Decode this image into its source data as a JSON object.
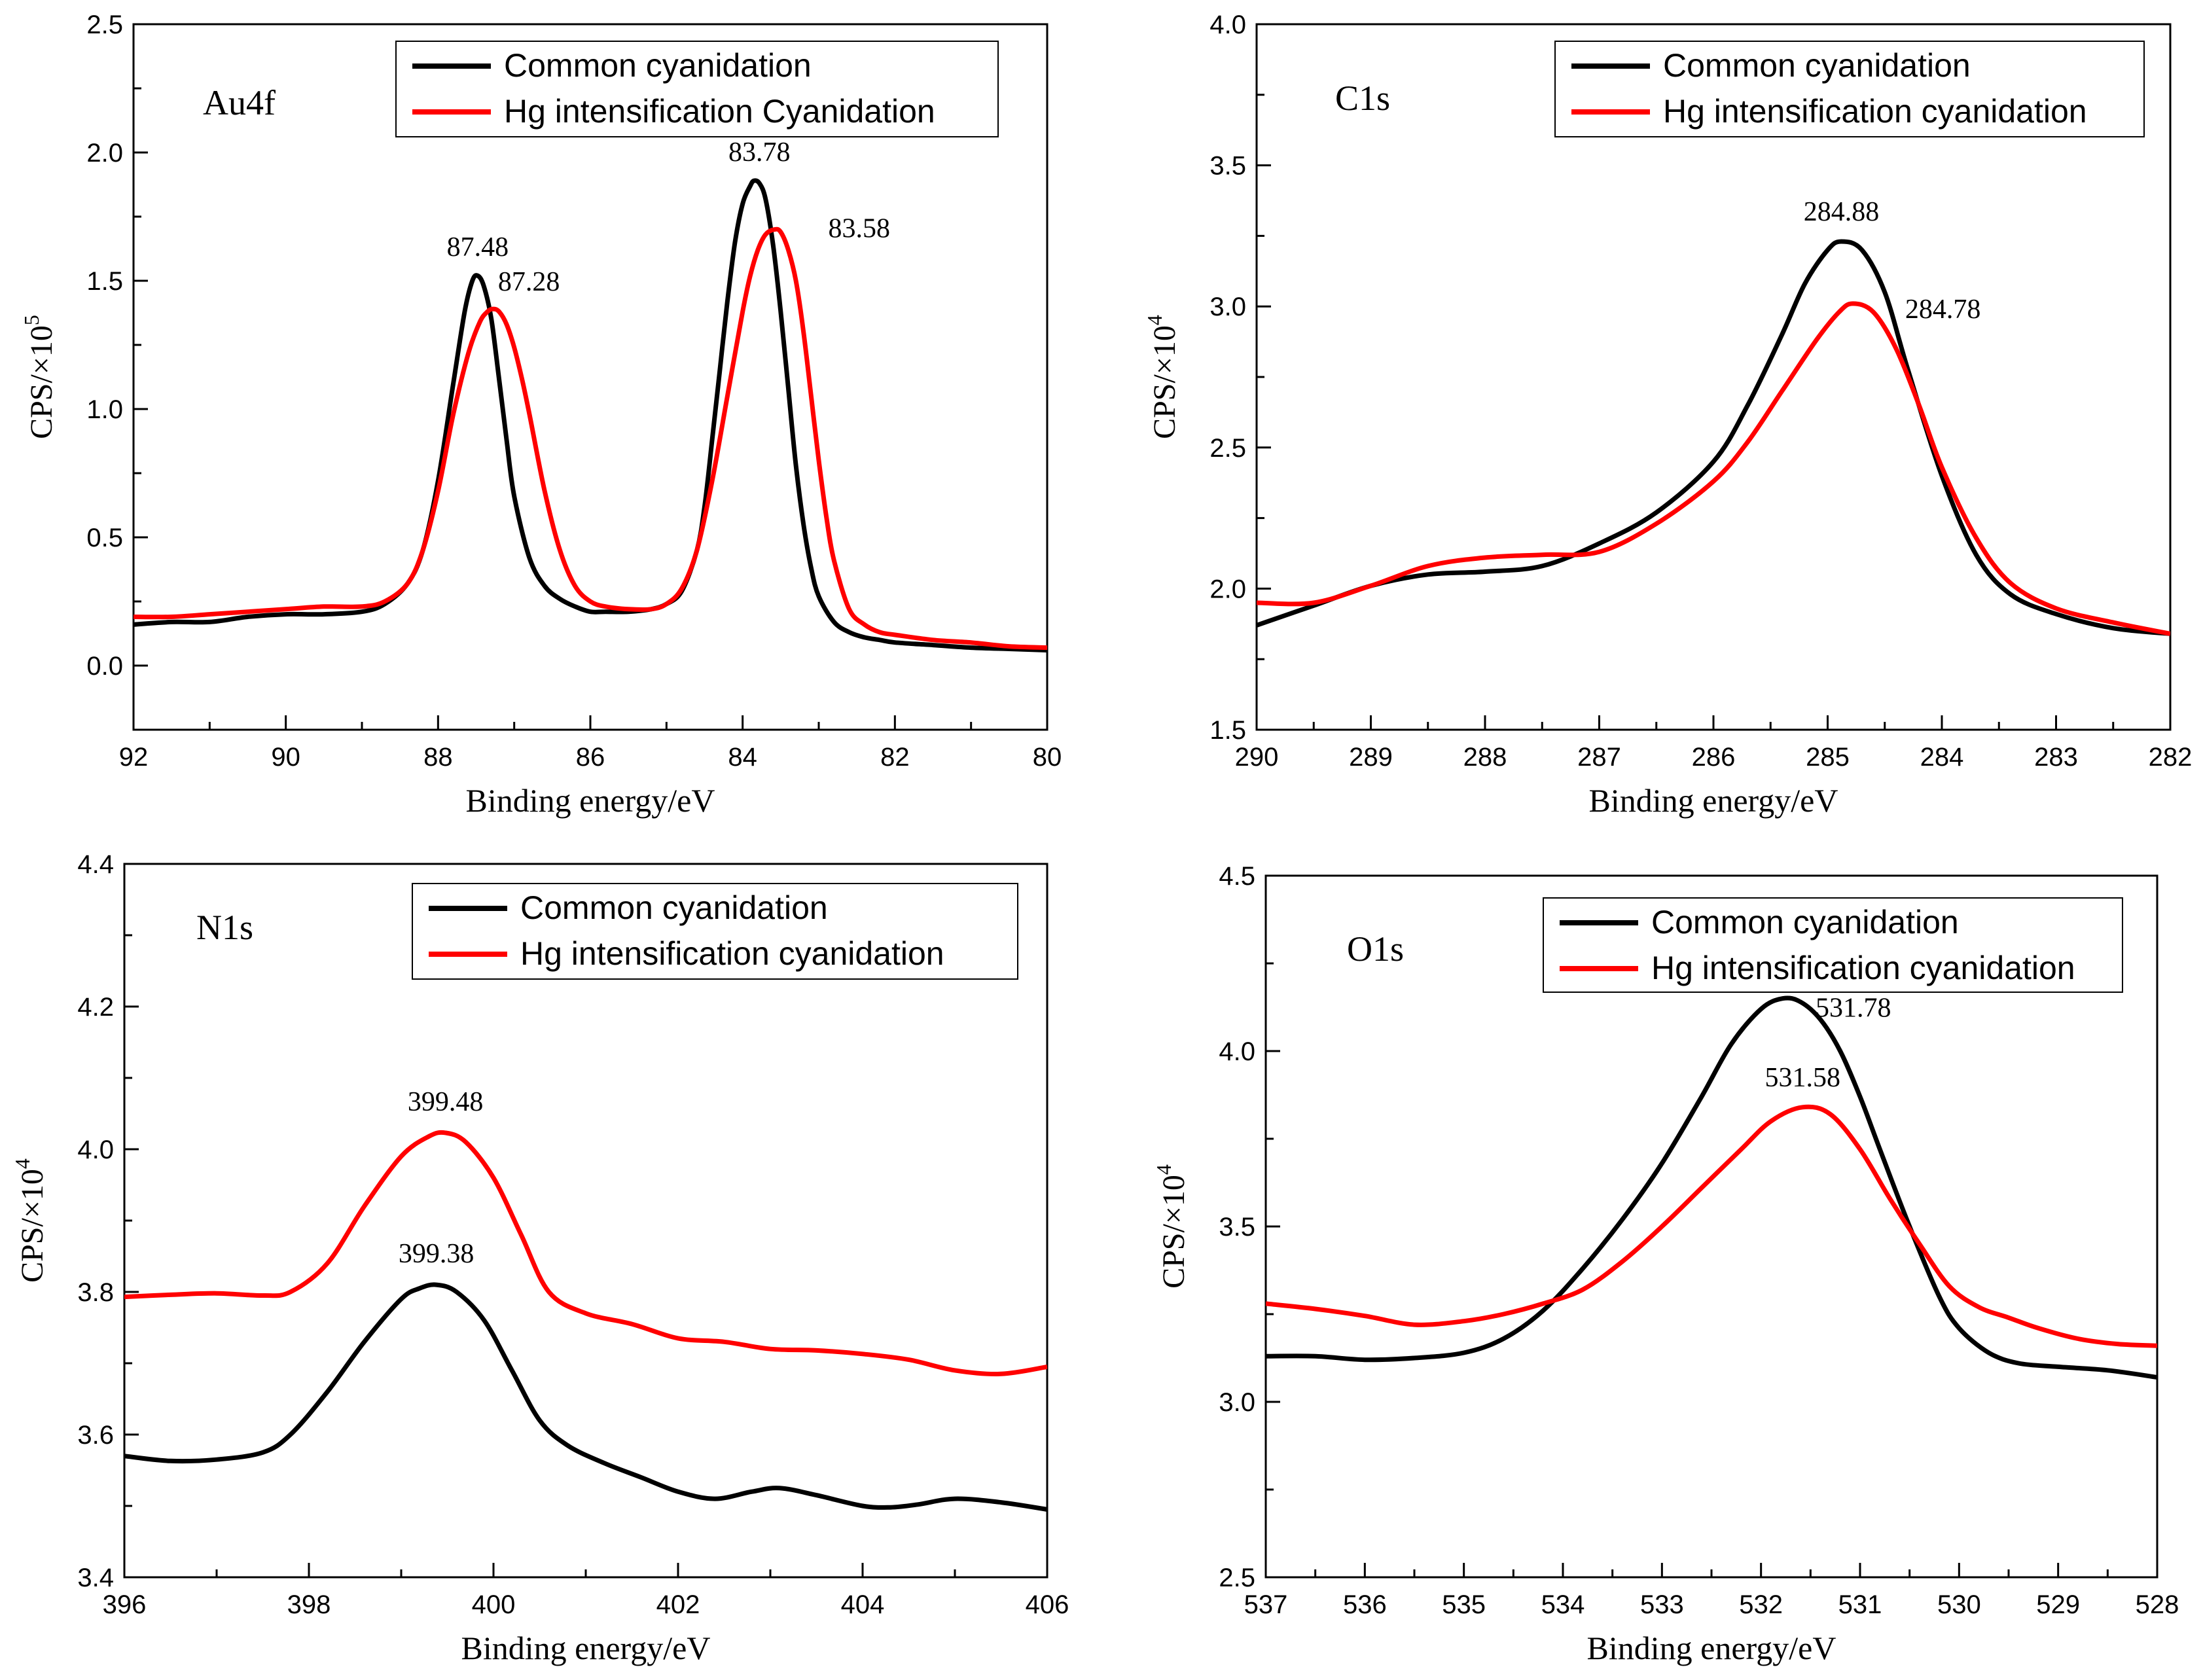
{
  "chart_data": [
    {
      "type": "line",
      "panel_label": "Au4f",
      "xlabel": "Binding energy/eV",
      "ylabel_main": "CPS/×10",
      "ylabel_exp": "5",
      "xlim": [
        92,
        80
      ],
      "ylim": [
        -0.25,
        2.5
      ],
      "xticks": [
        "92",
        "90",
        "88",
        "86",
        "84",
        "82",
        "80"
      ],
      "yticks": [
        "0.0",
        "0.5",
        "1.0",
        "1.5",
        "2.0",
        "2.5"
      ],
      "series": [
        {
          "name": "Common cyanidation",
          "color": "#000000",
          "x": [
            92,
            91.5,
            91,
            90.5,
            90,
            89.5,
            89,
            88.7,
            88.4,
            88.2,
            88,
            87.8,
            87.65,
            87.55,
            87.48,
            87.4,
            87.3,
            87.2,
            87.1,
            87,
            86.8,
            86.6,
            86.4,
            86.2,
            86,
            85.8,
            85.5,
            85.2,
            85,
            84.8,
            84.6,
            84.5,
            84.4,
            84.3,
            84.2,
            84.1,
            84,
            83.9,
            83.85,
            83.78,
            83.7,
            83.6,
            83.5,
            83.4,
            83.3,
            83.2,
            83.1,
            83,
            82.8,
            82.6,
            82.4,
            82.2,
            82,
            81.5,
            81,
            80.5,
            80
          ],
          "y": [
            0.16,
            0.17,
            0.17,
            0.19,
            0.2,
            0.2,
            0.21,
            0.24,
            0.32,
            0.45,
            0.72,
            1.1,
            1.38,
            1.5,
            1.52,
            1.48,
            1.35,
            1.12,
            0.88,
            0.66,
            0.42,
            0.31,
            0.26,
            0.23,
            0.21,
            0.21,
            0.21,
            0.22,
            0.24,
            0.29,
            0.45,
            0.62,
            0.88,
            1.15,
            1.42,
            1.65,
            1.8,
            1.87,
            1.89,
            1.88,
            1.82,
            1.64,
            1.38,
            1.08,
            0.78,
            0.55,
            0.38,
            0.27,
            0.17,
            0.13,
            0.11,
            0.1,
            0.09,
            0.08,
            0.07,
            0.065,
            0.06
          ]
        },
        {
          "name": "Hg intensification Cyanidation",
          "color": "#ff0000",
          "x": [
            92,
            91.5,
            91,
            90.5,
            90,
            89.5,
            89,
            88.7,
            88.4,
            88.2,
            88,
            87.8,
            87.6,
            87.45,
            87.35,
            87.28,
            87.2,
            87.1,
            87,
            86.9,
            86.8,
            86.6,
            86.4,
            86.2,
            86,
            85.8,
            85.5,
            85.2,
            85,
            84.8,
            84.6,
            84.4,
            84.2,
            84,
            83.9,
            83.8,
            83.7,
            83.58,
            83.5,
            83.4,
            83.3,
            83.2,
            83.1,
            83,
            82.9,
            82.8,
            82.6,
            82.4,
            82.2,
            82,
            81.5,
            81,
            80.5,
            80
          ],
          "y": [
            0.19,
            0.19,
            0.2,
            0.21,
            0.22,
            0.23,
            0.23,
            0.25,
            0.32,
            0.45,
            0.68,
            0.98,
            1.22,
            1.34,
            1.38,
            1.39,
            1.38,
            1.33,
            1.24,
            1.12,
            0.98,
            0.68,
            0.45,
            0.31,
            0.25,
            0.23,
            0.22,
            0.22,
            0.24,
            0.3,
            0.45,
            0.72,
            1.05,
            1.38,
            1.52,
            1.62,
            1.68,
            1.7,
            1.69,
            1.62,
            1.5,
            1.3,
            1.05,
            0.8,
            0.58,
            0.41,
            0.22,
            0.16,
            0.13,
            0.12,
            0.1,
            0.09,
            0.075,
            0.07
          ]
        }
      ],
      "annotations": [
        {
          "text": "87.48",
          "x": 87.48,
          "y": 1.52,
          "series": 0
        },
        {
          "text": "87.28",
          "x": 87.28,
          "y": 1.39,
          "series": 1
        },
        {
          "text": "83.78",
          "x": 83.78,
          "y": 1.89,
          "series": 0
        },
        {
          "text": "83.58",
          "x": 83.58,
          "y": 1.7,
          "series": 1
        }
      ],
      "legend": "top-right"
    },
    {
      "type": "line",
      "panel_label": "C1s",
      "xlabel": "Binding energy/eV",
      "ylabel_main": "CPS/×10",
      "ylabel_exp": "4",
      "xlim": [
        290,
        282
      ],
      "ylim": [
        1.5,
        4.0
      ],
      "xticks": [
        "290",
        "289",
        "288",
        "287",
        "286",
        "285",
        "284",
        "283",
        "282"
      ],
      "yticks": [
        "1.5",
        "2.0",
        "2.5",
        "3.0",
        "3.5",
        "4.0"
      ],
      "series": [
        {
          "name": "Common cyanidation",
          "color": "#000000",
          "x": [
            290,
            289.5,
            289,
            288.5,
            288,
            287.5,
            287,
            286.5,
            286,
            285.7,
            285.4,
            285.2,
            285,
            284.88,
            284.7,
            284.5,
            284.3,
            284,
            283.7,
            283.4,
            283,
            282.5,
            282
          ],
          "y": [
            1.87,
            1.94,
            2.01,
            2.05,
            2.06,
            2.08,
            2.16,
            2.27,
            2.45,
            2.65,
            2.9,
            3.08,
            3.2,
            3.23,
            3.2,
            3.05,
            2.78,
            2.4,
            2.12,
            1.98,
            1.91,
            1.86,
            1.84
          ]
        },
        {
          "name": "Hg intensification cyanidation",
          "color": "#ff0000",
          "x": [
            290,
            289.5,
            289,
            288.5,
            288,
            287.5,
            287,
            286.5,
            286,
            285.7,
            285.4,
            285.1,
            284.9,
            284.78,
            284.6,
            284.4,
            284.2,
            284,
            283.7,
            283.4,
            283,
            282.5,
            282
          ],
          "y": [
            1.95,
            1.95,
            2.01,
            2.08,
            2.11,
            2.12,
            2.13,
            2.23,
            2.38,
            2.52,
            2.7,
            2.88,
            2.98,
            3.01,
            2.98,
            2.85,
            2.65,
            2.43,
            2.18,
            2.02,
            1.93,
            1.88,
            1.84
          ]
        }
      ],
      "annotations": [
        {
          "text": "284.88",
          "x": 284.88,
          "y": 3.23,
          "series": 0
        },
        {
          "text": "284.78",
          "x": 284.78,
          "y": 3.01,
          "series": 1
        }
      ],
      "legend": "top-right"
    },
    {
      "type": "line",
      "panel_label": "N1s",
      "xlabel": "Binding energy/eV",
      "ylabel_main": "CPS/×10",
      "ylabel_exp": "4",
      "xlim": [
        396,
        406
      ],
      "ylim": [
        3.4,
        4.4
      ],
      "xticks": [
        "396",
        "398",
        "400",
        "402",
        "404",
        "406"
      ],
      "yticks": [
        "3.4",
        "3.6",
        "3.8",
        "4.0",
        "4.2",
        "4.4"
      ],
      "series": [
        {
          "name": "Common cyanidation",
          "color": "#000000",
          "x": [
            396,
            396.5,
            397,
            397.5,
            397.8,
            398.2,
            398.6,
            399,
            399.2,
            399.38,
            399.6,
            399.9,
            400.2,
            400.5,
            400.8,
            401.2,
            401.6,
            402,
            402.4,
            402.8,
            403.1,
            403.5,
            404,
            404.3,
            404.6,
            405,
            405.5,
            406
          ],
          "y": [
            3.57,
            3.563,
            3.565,
            3.575,
            3.6,
            3.66,
            3.73,
            3.79,
            3.805,
            3.81,
            3.8,
            3.76,
            3.69,
            3.62,
            3.585,
            3.56,
            3.54,
            3.52,
            3.51,
            3.52,
            3.525,
            3.515,
            3.5,
            3.498,
            3.502,
            3.51,
            3.505,
            3.495
          ]
        },
        {
          "name": "Hg intensification cyanidation",
          "color": "#ff0000",
          "x": [
            396,
            396.5,
            397,
            397.5,
            397.8,
            398.2,
            398.6,
            399,
            399.3,
            399.48,
            399.7,
            400,
            400.3,
            400.6,
            401,
            401.5,
            402,
            402.5,
            403,
            403.5,
            404,
            404.5,
            405,
            405.5,
            406
          ],
          "y": [
            3.793,
            3.796,
            3.798,
            3.795,
            3.8,
            3.84,
            3.92,
            3.99,
            4.018,
            4.023,
            4.01,
            3.96,
            3.88,
            3.8,
            3.77,
            3.755,
            3.735,
            3.73,
            3.72,
            3.718,
            3.713,
            3.705,
            3.69,
            3.685,
            3.695
          ]
        }
      ],
      "annotations": [
        {
          "text": "399.48",
          "x": 399.48,
          "y": 4.023,
          "series": 1
        },
        {
          "text": "399.38",
          "x": 399.38,
          "y": 3.81,
          "series": 0
        }
      ],
      "legend": "top-right"
    },
    {
      "type": "line",
      "panel_label": "O1s",
      "xlabel": "Binding energy/eV",
      "ylabel_main": "CPS/×10",
      "ylabel_exp": "4",
      "xlim": [
        537,
        528
      ],
      "ylim": [
        2.5,
        4.5
      ],
      "xticks": [
        "537",
        "536",
        "535",
        "534",
        "533",
        "532",
        "531",
        "530",
        "529",
        "528"
      ],
      "yticks": [
        "2.5",
        "3.0",
        "3.5",
        "4.0",
        "4.5"
      ],
      "series": [
        {
          "name": "Common cyanidation",
          "color": "#000000",
          "x": [
            537,
            536.5,
            536,
            535.5,
            535,
            534.6,
            534.2,
            533.8,
            533.4,
            533,
            532.6,
            532.3,
            532,
            531.78,
            531.6,
            531.4,
            531.2,
            531,
            530.8,
            530.5,
            530.2,
            530,
            529.7,
            529.4,
            529,
            528.5,
            528
          ],
          "y": [
            3.13,
            3.13,
            3.12,
            3.125,
            3.14,
            3.18,
            3.26,
            3.38,
            3.52,
            3.68,
            3.87,
            4.02,
            4.12,
            4.15,
            4.14,
            4.09,
            4.0,
            3.87,
            3.72,
            3.5,
            3.3,
            3.21,
            3.14,
            3.11,
            3.1,
            3.09,
            3.07
          ]
        },
        {
          "name": "Hg intensification cyanidation",
          "color": "#ff0000",
          "x": [
            537,
            536.5,
            536,
            535.5,
            535,
            534.6,
            534.2,
            533.8,
            533.4,
            533,
            532.6,
            532.2,
            531.9,
            531.58,
            531.3,
            531,
            530.7,
            530.4,
            530.1,
            529.8,
            529.5,
            529.2,
            528.8,
            528.4,
            528
          ],
          "y": [
            3.28,
            3.265,
            3.245,
            3.22,
            3.23,
            3.25,
            3.28,
            3.32,
            3.4,
            3.5,
            3.61,
            3.72,
            3.8,
            3.84,
            3.82,
            3.72,
            3.58,
            3.45,
            3.33,
            3.27,
            3.24,
            3.21,
            3.18,
            3.165,
            3.16
          ]
        }
      ],
      "annotations": [
        {
          "text": "531.78",
          "x": 531.78,
          "y": 4.15,
          "series": 0
        },
        {
          "text": "531.58",
          "x": 531.58,
          "y": 3.84,
          "series": 1
        }
      ],
      "legend": "top-right"
    }
  ]
}
